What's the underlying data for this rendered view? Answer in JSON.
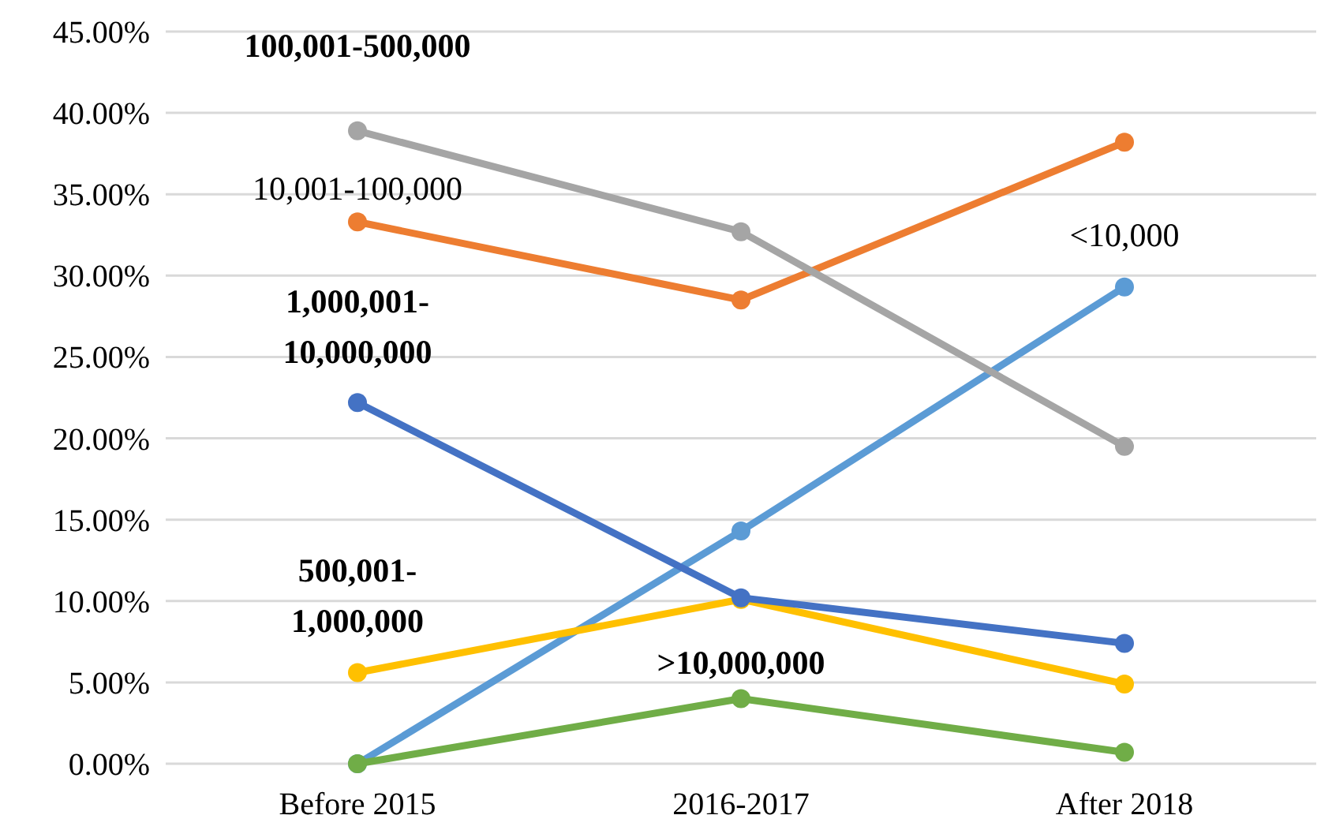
{
  "chart_data": {
    "type": "line",
    "categories": [
      "Before 2015",
      "2016-2017",
      "After 2018"
    ],
    "series": [
      {
        "name": "<10,000",
        "color": "#5b9bd5",
        "values": [
          0,
          14.3,
          29.3
        ]
      },
      {
        "name": "10,001-100,000",
        "color": "#ed7d31",
        "values": [
          33.3,
          28.5,
          38.2
        ]
      },
      {
        "name": "100,001-500,000",
        "color": "#a5a5a5",
        "values": [
          38.9,
          32.7,
          19.5
        ]
      },
      {
        "name": "500,001-1,000,000",
        "color": "#ffc000",
        "values": [
          5.6,
          10.1,
          4.9
        ]
      },
      {
        "name": "1,000,001-10,000,000",
        "color": "#4472c4",
        "values": [
          22.2,
          10.2,
          7.4
        ]
      },
      {
        "name": ">10,000,000",
        "color": "#70ad47",
        "values": [
          0,
          4,
          0.7
        ]
      }
    ],
    "ylim": [
      0,
      45
    ],
    "yticks": [
      {
        "value": 0,
        "label": "0.00%"
      },
      {
        "value": 5,
        "label": "5.00%"
      },
      {
        "value": 10,
        "label": "10.00%"
      },
      {
        "value": 15,
        "label": "15.00%"
      },
      {
        "value": 20,
        "label": "20.00%"
      },
      {
        "value": 25,
        "label": "25.00%"
      },
      {
        "value": 30,
        "label": "30.00%"
      },
      {
        "value": 35,
        "label": "35.00%"
      },
      {
        "value": 40,
        "label": "40.00%"
      },
      {
        "value": 45,
        "label": "45.00%"
      }
    ],
    "grid": "y",
    "marker": "circle",
    "line_style": "solid"
  }
}
